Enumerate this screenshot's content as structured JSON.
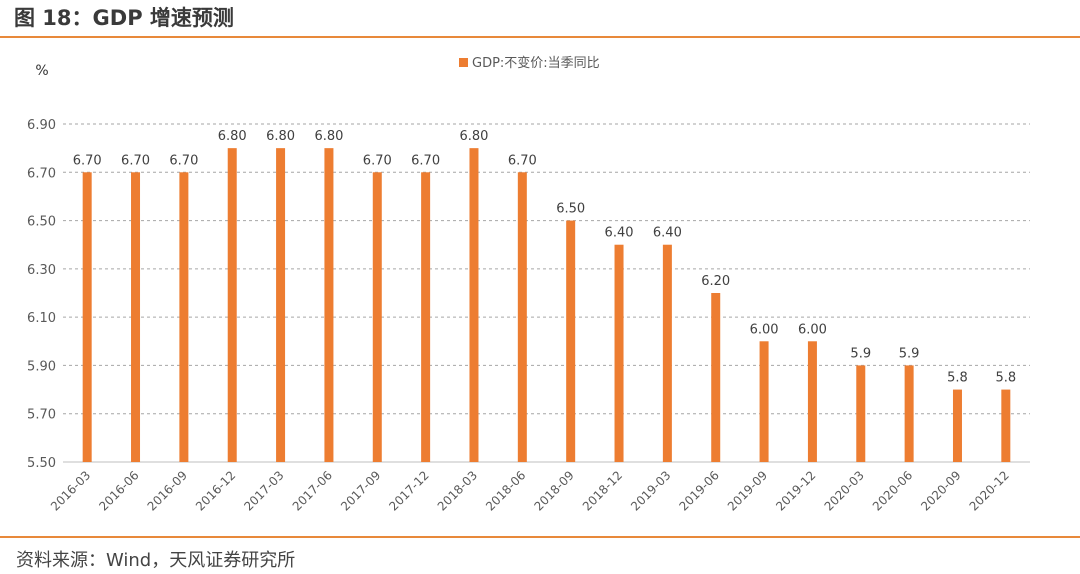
{
  "header": {
    "title": "图 18：GDP 增速预测"
  },
  "footer": {
    "source": "资料来源：Wind，天风证券研究所"
  },
  "colors": {
    "bar": "#ed7d31",
    "accent": "#e8893a",
    "grid": "#a6a6a6"
  },
  "chart_data": {
    "type": "bar",
    "unit_label": "%",
    "categories": [
      "2016-03",
      "2016-06",
      "2016-09",
      "2016-12",
      "2017-03",
      "2017-06",
      "2017-09",
      "2017-12",
      "2018-03",
      "2018-06",
      "2018-09",
      "2018-12",
      "2019-03",
      "2019-06",
      "2019-09",
      "2019-12",
      "2020-03",
      "2020-06",
      "2020-09",
      "2020-12"
    ],
    "series": [
      {
        "name": "GDP:不变价:当季同比",
        "values": [
          6.7,
          6.7,
          6.7,
          6.8,
          6.8,
          6.8,
          6.7,
          6.7,
          6.8,
          6.7,
          6.5,
          6.4,
          6.4,
          6.2,
          6.0,
          6.0,
          5.9,
          5.9,
          5.8,
          5.8
        ],
        "data_labels": [
          "6.70",
          "6.70",
          "6.70",
          "6.80",
          "6.80",
          "6.80",
          "6.70",
          "6.70",
          "6.80",
          "6.70",
          "6.50",
          "6.40",
          "6.40",
          "6.20",
          "6.00",
          "6.00",
          "5.9",
          "5.9",
          "5.8",
          "5.8"
        ]
      }
    ],
    "y_ticks": [
      "5.50",
      "5.70",
      "5.90",
      "6.10",
      "6.30",
      "6.50",
      "6.70",
      "6.90"
    ],
    "ylim": [
      5.5,
      6.9
    ],
    "grid": true,
    "legend_position": "top-center"
  }
}
